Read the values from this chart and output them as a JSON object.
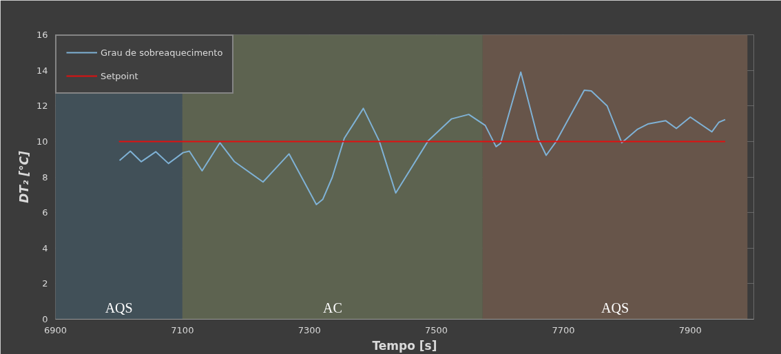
{
  "chart_data": {
    "type": "line",
    "xlabel": "Tempo [s]",
    "ylabel": "DT₂ [°C]",
    "xlim": [
      6900,
      8000
    ],
    "xticks": [
      6900,
      7100,
      7300,
      7500,
      7700,
      7900
    ],
    "ylim": [
      0,
      16
    ],
    "yticks": [
      0,
      2,
      4,
      6,
      8,
      10,
      12,
      14,
      16
    ],
    "grid": true,
    "legend": "top left",
    "line_style": "solid",
    "series": [
      {
        "name": "Grau de sobreaquecimento",
        "color": "#7fb2d6",
        "x": [
          7001,
          7018,
          7035,
          7058,
          7078,
          7101,
          7111,
          7131,
          7159,
          7182,
          7227,
          7268,
          7311,
          7321,
          7336,
          7355,
          7385,
          7410,
          7436,
          7487,
          7524,
          7551,
          7577,
          7594,
          7601,
          7633,
          7660,
          7673,
          7688,
          7733,
          7744,
          7769,
          7792,
          7817,
          7833,
          7861,
          7878,
          7900,
          7934,
          7945,
          7955
        ],
        "values": [
          8.93,
          9.45,
          8.86,
          9.42,
          8.76,
          9.37,
          9.45,
          8.35,
          9.93,
          8.86,
          7.72,
          9.3,
          6.45,
          6.74,
          7.98,
          10.18,
          11.86,
          10.03,
          7.1,
          10.03,
          11.27,
          11.52,
          10.9,
          9.71,
          9.89,
          13.9,
          10.18,
          9.22,
          9.96,
          12.88,
          12.84,
          12.0,
          9.93,
          10.69,
          10.98,
          11.17,
          10.73,
          11.37,
          10.54,
          11.08,
          11.23
        ]
      },
      {
        "name": "Setpoint",
        "color": "#e01010",
        "x": [
          7000,
          7955
        ],
        "values": [
          10,
          10
        ]
      }
    ],
    "bands": [
      {
        "axis": "x",
        "from": 6900,
        "to": 7100,
        "label": "AQS",
        "color": "#415058"
      },
      {
        "axis": "x",
        "from": 7100,
        "to": 7573,
        "label": "AC",
        "color": "#5d6350"
      },
      {
        "axis": "x",
        "from": 7573,
        "to": 7990,
        "label": "AQS",
        "color": "#67554a"
      }
    ]
  }
}
